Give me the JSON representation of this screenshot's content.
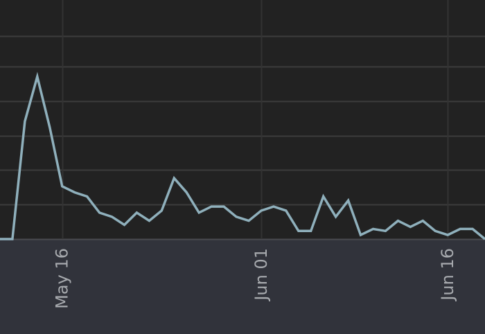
{
  "chart_data": {
    "type": "line",
    "title": "",
    "xlabel": "",
    "ylabel": "",
    "grid": true,
    "legend": "none",
    "x_ticks": [
      {
        "date": "2024-05-16",
        "label": "May 16"
      },
      {
        "date": "2024-06-01",
        "label": "Jun 01"
      },
      {
        "date": "2024-06-16",
        "label": "Jun 16"
      }
    ],
    "xlim": [
      "2024-05-11",
      "2024-06-19"
    ],
    "ylim": [
      0,
      100
    ],
    "y_gridlines": [
      0,
      17,
      34,
      51,
      68,
      85,
      100
    ],
    "series": [
      {
        "color": "#8fb0bc",
        "x": [
          "2024-05-11",
          "2024-05-12",
          "2024-05-13",
          "2024-05-14",
          "2024-05-15",
          "2024-05-16",
          "2024-05-17",
          "2024-05-18",
          "2024-05-19",
          "2024-05-20",
          "2024-05-21",
          "2024-05-22",
          "2024-05-23",
          "2024-05-24",
          "2024-05-25",
          "2024-05-26",
          "2024-05-27",
          "2024-05-28",
          "2024-05-29",
          "2024-05-30",
          "2024-05-31",
          "2024-06-01",
          "2024-06-02",
          "2024-06-03",
          "2024-06-04",
          "2024-06-05",
          "2024-06-06",
          "2024-06-07",
          "2024-06-08",
          "2024-06-09",
          "2024-06-10",
          "2024-06-11",
          "2024-06-12",
          "2024-06-13",
          "2024-06-14",
          "2024-06-15",
          "2024-06-16",
          "2024-06-17",
          "2024-06-18",
          "2024-06-19"
        ],
        "y": [
          0,
          0,
          58,
          80,
          55,
          26,
          23,
          21,
          13,
          11,
          7,
          13,
          9,
          14,
          30,
          23,
          13,
          16,
          16,
          11,
          9,
          14,
          16,
          14,
          4,
          4,
          21,
          11,
          19,
          2,
          5,
          4,
          9,
          6,
          9,
          4,
          2,
          5,
          5,
          0
        ]
      }
    ]
  }
}
